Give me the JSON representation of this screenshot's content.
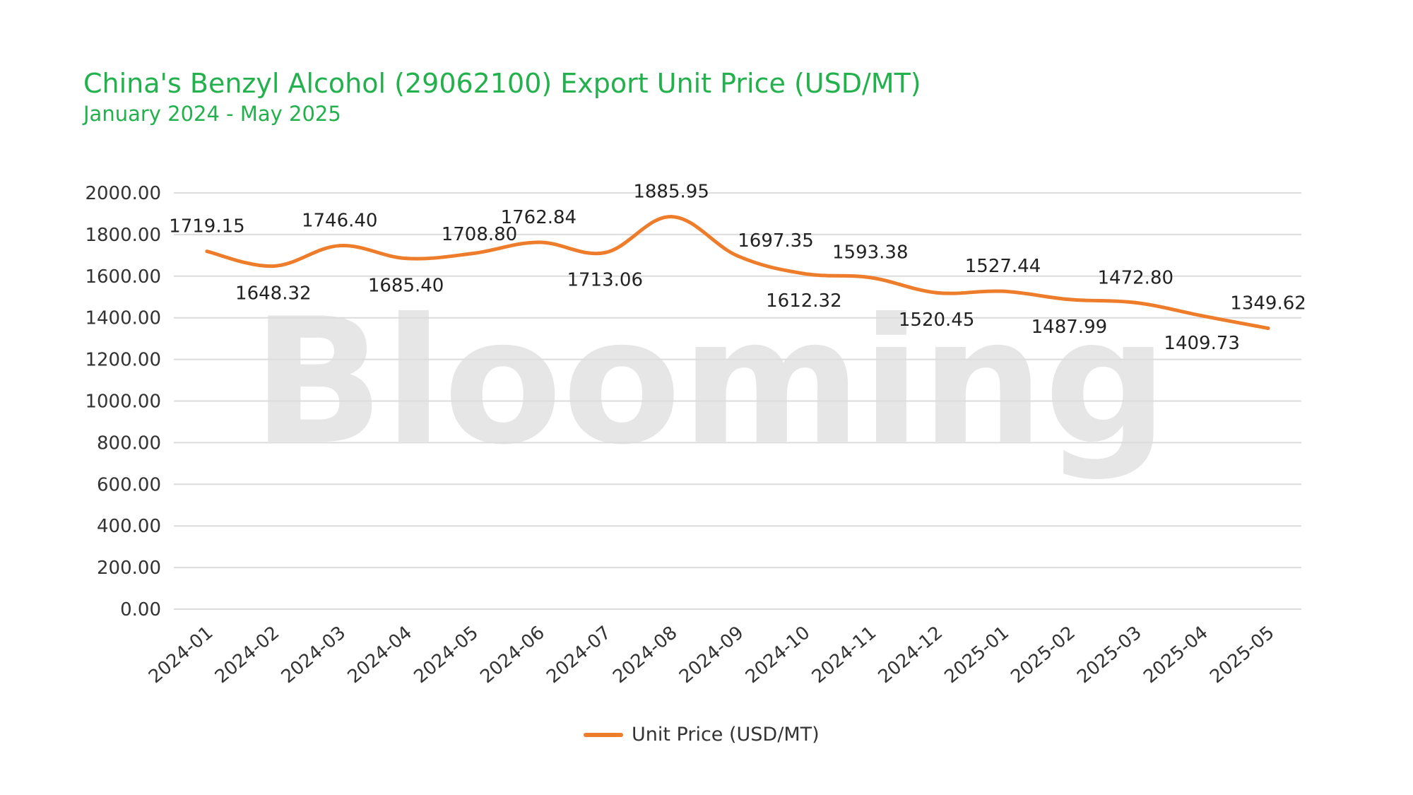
{
  "header": {
    "title": "China's Benzyl Alcohol (29062100) Export Unit Price (USD/MT)",
    "subtitle": "January 2024 - May 2025"
  },
  "watermark": {
    "text": "Blooming"
  },
  "colors": {
    "title": "#22b14c",
    "series": "#ee7d2b",
    "grid": "#dcdcdc",
    "watermark": "#e6e6e6"
  },
  "legend": {
    "label": "Unit Price (USD/MT)",
    "position": "bottom-center"
  },
  "chart_data": {
    "type": "line",
    "title": "China's Benzyl Alcohol (29062100) Export Unit Price (USD/MT)",
    "subtitle": "January 2024 - May 2025",
    "xlabel": "",
    "ylabel": "",
    "ylim": [
      0,
      2000
    ],
    "yticks": [
      "0.00",
      "200.00",
      "400.00",
      "600.00",
      "800.00",
      "1000.00",
      "1200.00",
      "1400.00",
      "1600.00",
      "1800.00",
      "2000.00"
    ],
    "grid": true,
    "smooth": true,
    "categories": [
      "2024-01",
      "2024-02",
      "2024-03",
      "2024-04",
      "2024-05",
      "2024-06",
      "2024-07",
      "2024-08",
      "2024-09",
      "2024-10",
      "2024-11",
      "2024-12",
      "2025-01",
      "2025-02",
      "2025-03",
      "2025-04",
      "2025-05"
    ],
    "series": [
      {
        "name": "Unit Price (USD/MT)",
        "values": [
          1719.15,
          1648.32,
          1746.4,
          1685.4,
          1708.8,
          1762.84,
          1713.06,
          1885.95,
          1697.35,
          1612.32,
          1593.38,
          1520.45,
          1527.44,
          1487.99,
          1472.8,
          1409.73,
          1349.62
        ],
        "labels": [
          "1719.15",
          "1648.32",
          "1746.40",
          "1685.40",
          "1708.80",
          "1762.84",
          "1713.06",
          "1885.95",
          "1697.35",
          "1612.32",
          "1593.38",
          "1520.45",
          "1527.44",
          "1487.99",
          "1472.80",
          "1409.73",
          "1349.62"
        ]
      }
    ],
    "legend": "bottom-center"
  }
}
